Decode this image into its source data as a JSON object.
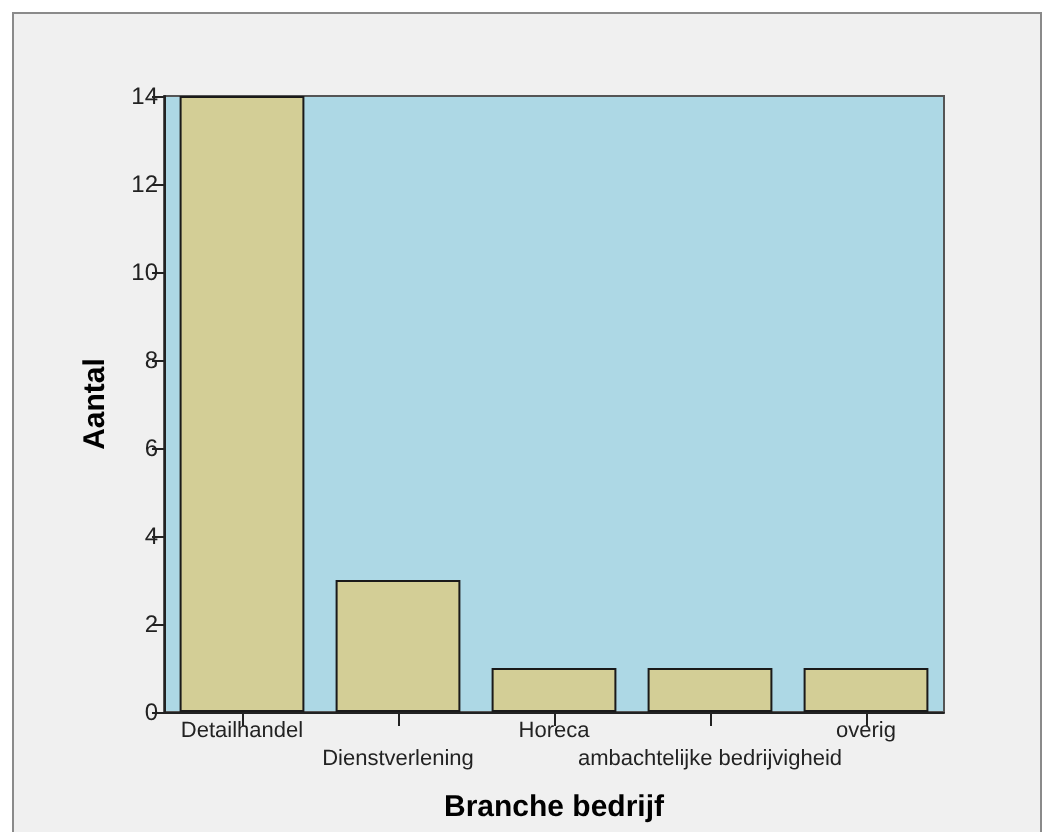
{
  "chart_data": {
    "type": "bar",
    "xlabel": "Branche bedrijf",
    "ylabel": "Aantal",
    "categories": [
      "Detailhandel",
      "Dienstverlening",
      "Horeca",
      "ambachtelijke bedrijvigheid",
      "overig"
    ],
    "values": [
      14,
      3,
      1,
      1,
      1
    ],
    "color": "#d3ce96",
    "ylim": [
      0,
      14
    ],
    "yticks": [
      0,
      2,
      4,
      6,
      8,
      10,
      12,
      14
    ]
  }
}
